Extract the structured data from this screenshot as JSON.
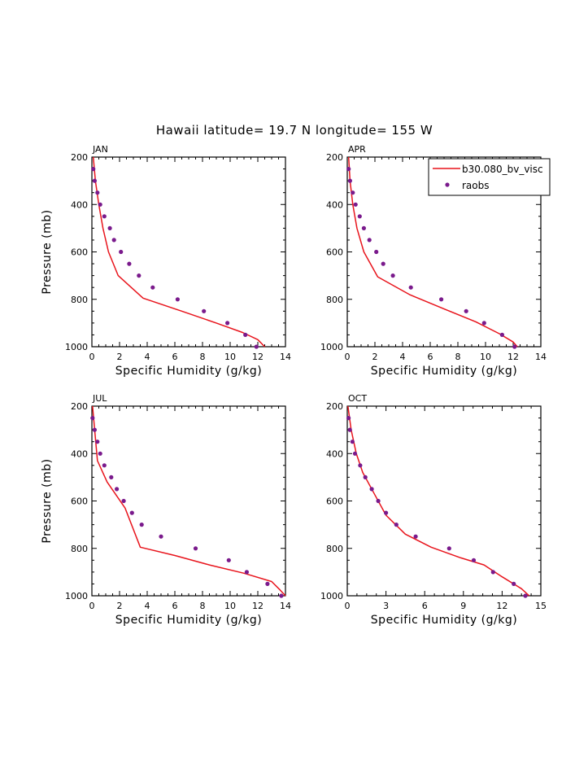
{
  "title": "Hawaii  latitude= 19.7 N longitude= 155 W",
  "legend": {
    "model_label": "b30.080_bv_visc",
    "obs_label": "raobs"
  },
  "colors": {
    "model": "#e8141c",
    "obs": "#7a1a8c",
    "axis": "#000000"
  },
  "chart_data": [
    {
      "type": "line",
      "panel": "JAN",
      "xlabel": "Specific Humidity (g/kg)",
      "ylabel": "Pressure (mb)",
      "xlim": [
        0,
        14
      ],
      "ylim": [
        1000,
        200
      ],
      "xticks": [
        0,
        2,
        4,
        6,
        8,
        10,
        12,
        14
      ],
      "yticks": [
        200,
        400,
        600,
        800,
        1000
      ],
      "series": [
        {
          "name": "b30.080_bv_visc",
          "kind": "line",
          "points": [
            [
              0.1,
              200
            ],
            [
              0.25,
              300
            ],
            [
              0.5,
              400
            ],
            [
              0.8,
              500
            ],
            [
              1.2,
              600
            ],
            [
              1.9,
              700
            ],
            [
              3.7,
              795
            ],
            [
              6.5,
              850
            ],
            [
              9.0,
              900
            ],
            [
              10.9,
              940
            ],
            [
              12.0,
              970
            ],
            [
              12.5,
              1000
            ]
          ]
        },
        {
          "name": "raobs",
          "kind": "scatter",
          "points": [
            [
              0.1,
              250
            ],
            [
              0.2,
              300
            ],
            [
              0.4,
              350
            ],
            [
              0.6,
              400
            ],
            [
              0.9,
              450
            ],
            [
              1.3,
              500
            ],
            [
              1.6,
              550
            ],
            [
              2.1,
              600
            ],
            [
              2.7,
              650
            ],
            [
              3.4,
              700
            ],
            [
              4.4,
              750
            ],
            [
              6.2,
              800
            ],
            [
              8.1,
              850
            ],
            [
              9.8,
              900
            ],
            [
              11.1,
              950
            ],
            [
              11.9,
              1000
            ]
          ]
        }
      ]
    },
    {
      "type": "line",
      "panel": "APR",
      "xlabel": "Specific Humidity (g/kg)",
      "ylabel": "",
      "xlim": [
        0,
        14
      ],
      "ylim": [
        1000,
        200
      ],
      "xticks": [
        0,
        2,
        4,
        6,
        8,
        10,
        12,
        14
      ],
      "yticks": [
        200,
        400,
        600,
        800,
        1000
      ],
      "series": [
        {
          "name": "b30.080_bv_visc",
          "kind": "line",
          "points": [
            [
              0.1,
              200
            ],
            [
              0.2,
              300
            ],
            [
              0.4,
              400
            ],
            [
              0.7,
              500
            ],
            [
              1.2,
              600
            ],
            [
              2.2,
              705
            ],
            [
              4.5,
              780
            ],
            [
              7.2,
              845
            ],
            [
              9.3,
              895
            ],
            [
              11.0,
              945
            ],
            [
              12.0,
              980
            ],
            [
              12.3,
              1000
            ]
          ]
        },
        {
          "name": "raobs",
          "kind": "scatter",
          "points": [
            [
              0.1,
              250
            ],
            [
              0.2,
              300
            ],
            [
              0.4,
              350
            ],
            [
              0.6,
              400
            ],
            [
              0.9,
              450
            ],
            [
              1.2,
              500
            ],
            [
              1.6,
              550
            ],
            [
              2.1,
              600
            ],
            [
              2.6,
              650
            ],
            [
              3.3,
              700
            ],
            [
              4.6,
              750
            ],
            [
              6.8,
              800
            ],
            [
              8.6,
              850
            ],
            [
              9.9,
              900
            ],
            [
              11.2,
              950
            ],
            [
              12.1,
              1000
            ]
          ]
        }
      ]
    },
    {
      "type": "line",
      "panel": "JUL",
      "xlabel": "Specific Humidity (g/kg)",
      "ylabel": "Pressure (mb)",
      "xlim": [
        0,
        14
      ],
      "ylim": [
        1000,
        200
      ],
      "xticks": [
        0,
        2,
        4,
        6,
        8,
        10,
        12,
        14
      ],
      "yticks": [
        200,
        400,
        600,
        800,
        1000
      ],
      "series": [
        {
          "name": "b30.080_bv_visc",
          "kind": "line",
          "points": [
            [
              0.05,
              200
            ],
            [
              0.2,
              300
            ],
            [
              0.4,
              430
            ],
            [
              1.1,
              520
            ],
            [
              2.4,
              630
            ],
            [
              3.5,
              795
            ],
            [
              6.0,
              830
            ],
            [
              8.5,
              870
            ],
            [
              11.0,
              905
            ],
            [
              13.0,
              940
            ],
            [
              13.6,
              975
            ],
            [
              14.0,
              1000
            ]
          ]
        },
        {
          "name": "raobs",
          "kind": "scatter",
          "points": [
            [
              0.05,
              250
            ],
            [
              0.2,
              300
            ],
            [
              0.4,
              350
            ],
            [
              0.6,
              400
            ],
            [
              0.9,
              450
            ],
            [
              1.4,
              500
            ],
            [
              1.8,
              550
            ],
            [
              2.3,
              600
            ],
            [
              2.9,
              650
            ],
            [
              3.6,
              700
            ],
            [
              5.0,
              750
            ],
            [
              7.5,
              800
            ],
            [
              9.9,
              850
            ],
            [
              11.2,
              900
            ],
            [
              12.7,
              950
            ],
            [
              13.7,
              1000
            ]
          ]
        }
      ]
    },
    {
      "type": "line",
      "panel": "OCT",
      "xlabel": "Specific Humidity (g/kg)",
      "ylabel": "",
      "xlim": [
        0,
        15
      ],
      "ylim": [
        1000,
        200
      ],
      "xticks": [
        0,
        3,
        6,
        9,
        12,
        15
      ],
      "yticks": [
        200,
        400,
        600,
        800,
        1000
      ],
      "series": [
        {
          "name": "b30.080_bv_visc",
          "kind": "line",
          "points": [
            [
              0.05,
              200
            ],
            [
              0.3,
              300
            ],
            [
              0.7,
              400
            ],
            [
              1.2,
              480
            ],
            [
              2.1,
              570
            ],
            [
              3.0,
              660
            ],
            [
              4.5,
              740
            ],
            [
              6.5,
              795
            ],
            [
              8.8,
              840
            ],
            [
              10.6,
              870
            ],
            [
              12.0,
              920
            ],
            [
              13.5,
              970
            ],
            [
              14.1,
              1000
            ]
          ]
        },
        {
          "name": "raobs",
          "kind": "scatter",
          "points": [
            [
              0.1,
              250
            ],
            [
              0.2,
              300
            ],
            [
              0.4,
              350
            ],
            [
              0.6,
              400
            ],
            [
              1.0,
              450
            ],
            [
              1.4,
              500
            ],
            [
              1.9,
              550
            ],
            [
              2.4,
              600
            ],
            [
              3.0,
              650
            ],
            [
              3.8,
              700
            ],
            [
              5.3,
              750
            ],
            [
              7.9,
              800
            ],
            [
              9.8,
              850
            ],
            [
              11.3,
              900
            ],
            [
              12.9,
              950
            ],
            [
              13.8,
              1000
            ]
          ]
        }
      ]
    }
  ]
}
